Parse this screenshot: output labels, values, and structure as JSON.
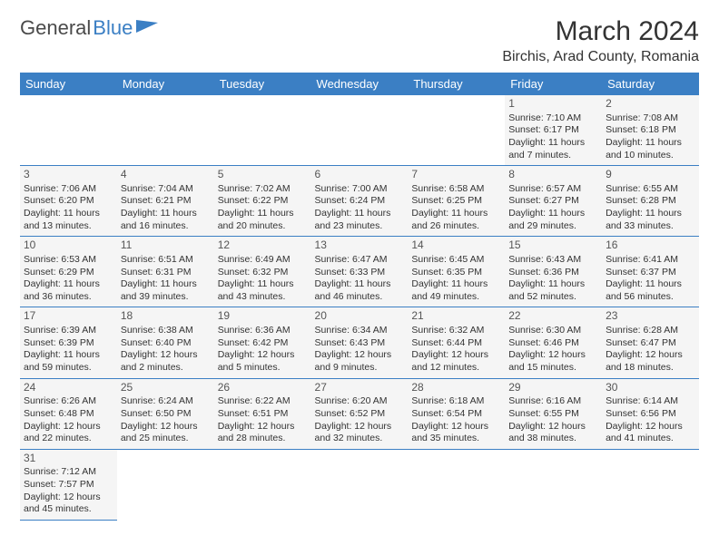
{
  "logo": {
    "part1": "General",
    "part2": "Blue"
  },
  "title": "March 2024",
  "location": "Birchis, Arad County, Romania",
  "colors": {
    "header_bg": "#3b7fc4",
    "header_text": "#ffffff",
    "cell_bg": "#f5f5f5",
    "border": "#3b7fc4",
    "text": "#333333"
  },
  "daynames": [
    "Sunday",
    "Monday",
    "Tuesday",
    "Wednesday",
    "Thursday",
    "Friday",
    "Saturday"
  ],
  "weeks": [
    [
      null,
      null,
      null,
      null,
      null,
      {
        "n": "1",
        "sr": "Sunrise: 7:10 AM",
        "ss": "Sunset: 6:17 PM",
        "dl": "Daylight: 11 hours and 7 minutes."
      },
      {
        "n": "2",
        "sr": "Sunrise: 7:08 AM",
        "ss": "Sunset: 6:18 PM",
        "dl": "Daylight: 11 hours and 10 minutes."
      }
    ],
    [
      {
        "n": "3",
        "sr": "Sunrise: 7:06 AM",
        "ss": "Sunset: 6:20 PM",
        "dl": "Daylight: 11 hours and 13 minutes."
      },
      {
        "n": "4",
        "sr": "Sunrise: 7:04 AM",
        "ss": "Sunset: 6:21 PM",
        "dl": "Daylight: 11 hours and 16 minutes."
      },
      {
        "n": "5",
        "sr": "Sunrise: 7:02 AM",
        "ss": "Sunset: 6:22 PM",
        "dl": "Daylight: 11 hours and 20 minutes."
      },
      {
        "n": "6",
        "sr": "Sunrise: 7:00 AM",
        "ss": "Sunset: 6:24 PM",
        "dl": "Daylight: 11 hours and 23 minutes."
      },
      {
        "n": "7",
        "sr": "Sunrise: 6:58 AM",
        "ss": "Sunset: 6:25 PM",
        "dl": "Daylight: 11 hours and 26 minutes."
      },
      {
        "n": "8",
        "sr": "Sunrise: 6:57 AM",
        "ss": "Sunset: 6:27 PM",
        "dl": "Daylight: 11 hours and 29 minutes."
      },
      {
        "n": "9",
        "sr": "Sunrise: 6:55 AM",
        "ss": "Sunset: 6:28 PM",
        "dl": "Daylight: 11 hours and 33 minutes."
      }
    ],
    [
      {
        "n": "10",
        "sr": "Sunrise: 6:53 AM",
        "ss": "Sunset: 6:29 PM",
        "dl": "Daylight: 11 hours and 36 minutes."
      },
      {
        "n": "11",
        "sr": "Sunrise: 6:51 AM",
        "ss": "Sunset: 6:31 PM",
        "dl": "Daylight: 11 hours and 39 minutes."
      },
      {
        "n": "12",
        "sr": "Sunrise: 6:49 AM",
        "ss": "Sunset: 6:32 PM",
        "dl": "Daylight: 11 hours and 43 minutes."
      },
      {
        "n": "13",
        "sr": "Sunrise: 6:47 AM",
        "ss": "Sunset: 6:33 PM",
        "dl": "Daylight: 11 hours and 46 minutes."
      },
      {
        "n": "14",
        "sr": "Sunrise: 6:45 AM",
        "ss": "Sunset: 6:35 PM",
        "dl": "Daylight: 11 hours and 49 minutes."
      },
      {
        "n": "15",
        "sr": "Sunrise: 6:43 AM",
        "ss": "Sunset: 6:36 PM",
        "dl": "Daylight: 11 hours and 52 minutes."
      },
      {
        "n": "16",
        "sr": "Sunrise: 6:41 AM",
        "ss": "Sunset: 6:37 PM",
        "dl": "Daylight: 11 hours and 56 minutes."
      }
    ],
    [
      {
        "n": "17",
        "sr": "Sunrise: 6:39 AM",
        "ss": "Sunset: 6:39 PM",
        "dl": "Daylight: 11 hours and 59 minutes."
      },
      {
        "n": "18",
        "sr": "Sunrise: 6:38 AM",
        "ss": "Sunset: 6:40 PM",
        "dl": "Daylight: 12 hours and 2 minutes."
      },
      {
        "n": "19",
        "sr": "Sunrise: 6:36 AM",
        "ss": "Sunset: 6:42 PM",
        "dl": "Daylight: 12 hours and 5 minutes."
      },
      {
        "n": "20",
        "sr": "Sunrise: 6:34 AM",
        "ss": "Sunset: 6:43 PM",
        "dl": "Daylight: 12 hours and 9 minutes."
      },
      {
        "n": "21",
        "sr": "Sunrise: 6:32 AM",
        "ss": "Sunset: 6:44 PM",
        "dl": "Daylight: 12 hours and 12 minutes."
      },
      {
        "n": "22",
        "sr": "Sunrise: 6:30 AM",
        "ss": "Sunset: 6:46 PM",
        "dl": "Daylight: 12 hours and 15 minutes."
      },
      {
        "n": "23",
        "sr": "Sunrise: 6:28 AM",
        "ss": "Sunset: 6:47 PM",
        "dl": "Daylight: 12 hours and 18 minutes."
      }
    ],
    [
      {
        "n": "24",
        "sr": "Sunrise: 6:26 AM",
        "ss": "Sunset: 6:48 PM",
        "dl": "Daylight: 12 hours and 22 minutes."
      },
      {
        "n": "25",
        "sr": "Sunrise: 6:24 AM",
        "ss": "Sunset: 6:50 PM",
        "dl": "Daylight: 12 hours and 25 minutes."
      },
      {
        "n": "26",
        "sr": "Sunrise: 6:22 AM",
        "ss": "Sunset: 6:51 PM",
        "dl": "Daylight: 12 hours and 28 minutes."
      },
      {
        "n": "27",
        "sr": "Sunrise: 6:20 AM",
        "ss": "Sunset: 6:52 PM",
        "dl": "Daylight: 12 hours and 32 minutes."
      },
      {
        "n": "28",
        "sr": "Sunrise: 6:18 AM",
        "ss": "Sunset: 6:54 PM",
        "dl": "Daylight: 12 hours and 35 minutes."
      },
      {
        "n": "29",
        "sr": "Sunrise: 6:16 AM",
        "ss": "Sunset: 6:55 PM",
        "dl": "Daylight: 12 hours and 38 minutes."
      },
      {
        "n": "30",
        "sr": "Sunrise: 6:14 AM",
        "ss": "Sunset: 6:56 PM",
        "dl": "Daylight: 12 hours and 41 minutes."
      }
    ],
    [
      {
        "n": "31",
        "sr": "Sunrise: 7:12 AM",
        "ss": "Sunset: 7:57 PM",
        "dl": "Daylight: 12 hours and 45 minutes."
      },
      null,
      null,
      null,
      null,
      null,
      null
    ]
  ]
}
